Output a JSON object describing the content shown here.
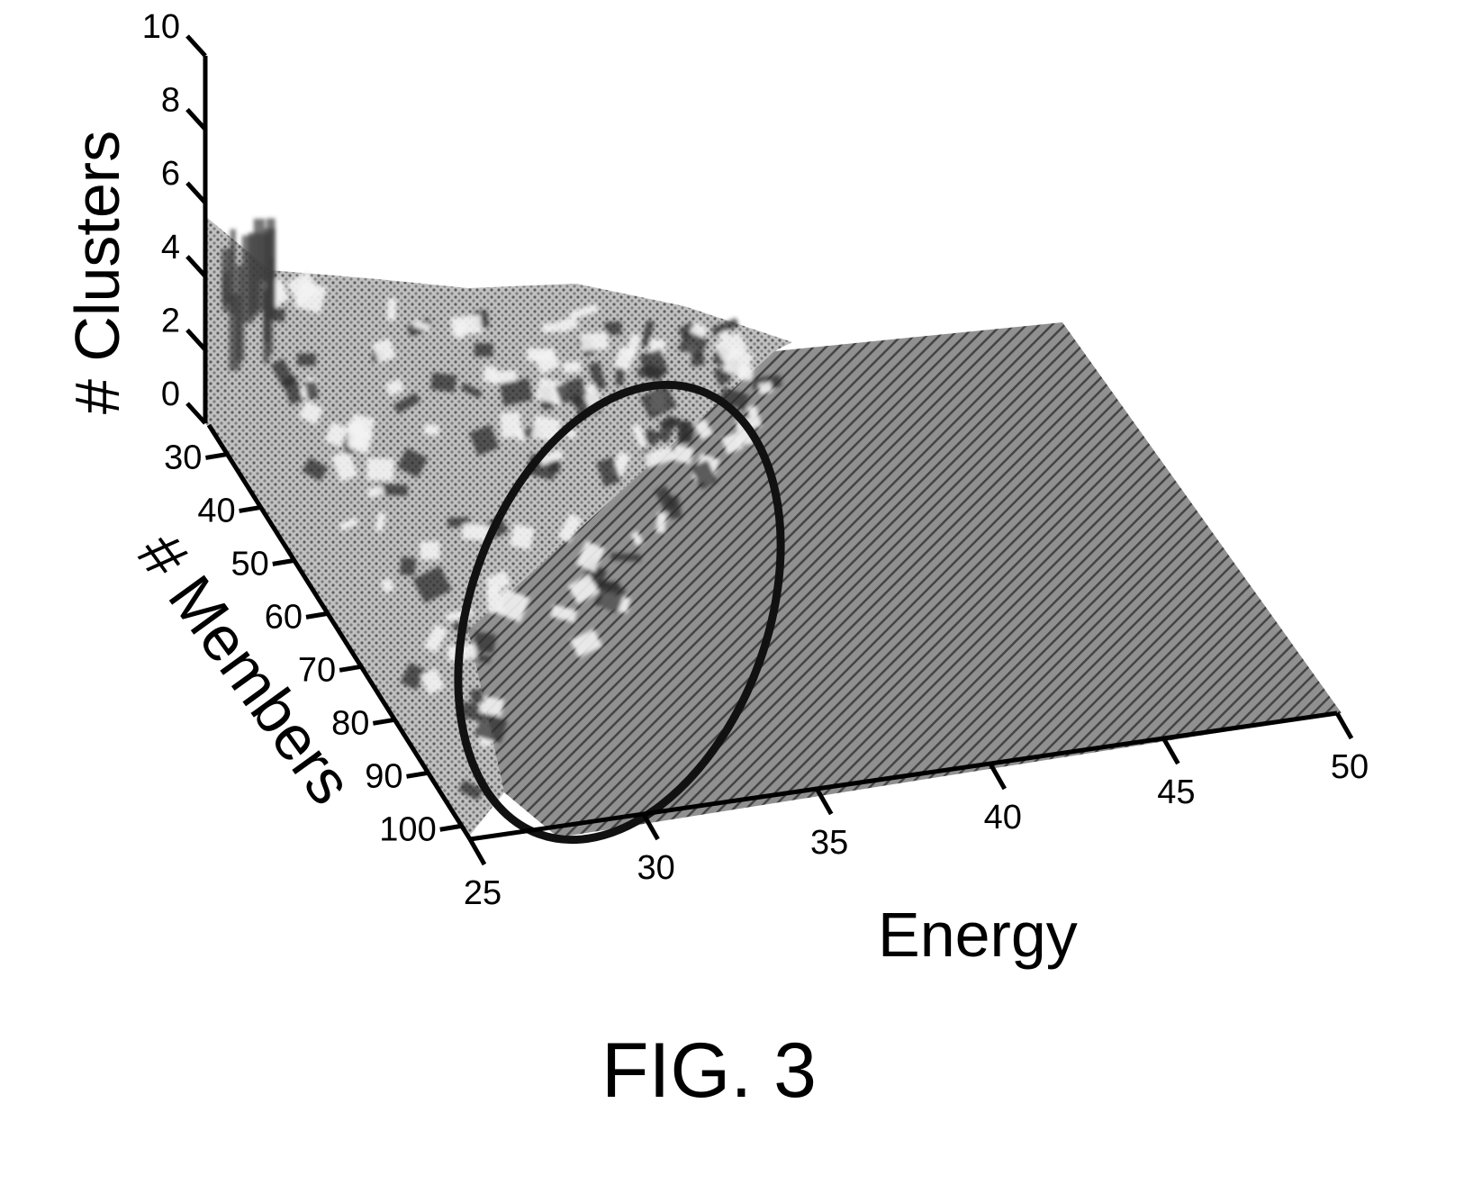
{
  "chart_data": {
    "type": "surface-3d",
    "caption": "FIG. 3",
    "axes": {
      "x": {
        "label": "Energy",
        "ticks": [
          "25",
          "30",
          "35",
          "40",
          "45",
          "50"
        ],
        "range": [
          25,
          50
        ]
      },
      "y": {
        "label": "# Members",
        "ticks": [
          "30",
          "40",
          "50",
          "60",
          "70",
          "80",
          "90",
          "100"
        ],
        "range": [
          30,
          100
        ]
      },
      "z": {
        "label": "# Clusters",
        "ticks": [
          "0",
          "2",
          "4",
          "6",
          "8",
          "10"
        ],
        "range": [
          0,
          10
        ]
      }
    },
    "annotations": [
      {
        "type": "ellipse",
        "region": {
          "energy": [
            27,
            33
          ],
          "members": [
            30,
            100
          ]
        }
      }
    ],
    "grid": false,
    "colors": {
      "surface_dark": "#4a4a4a",
      "surface_light": "#d8d8d8",
      "ink": "#000000"
    }
  }
}
